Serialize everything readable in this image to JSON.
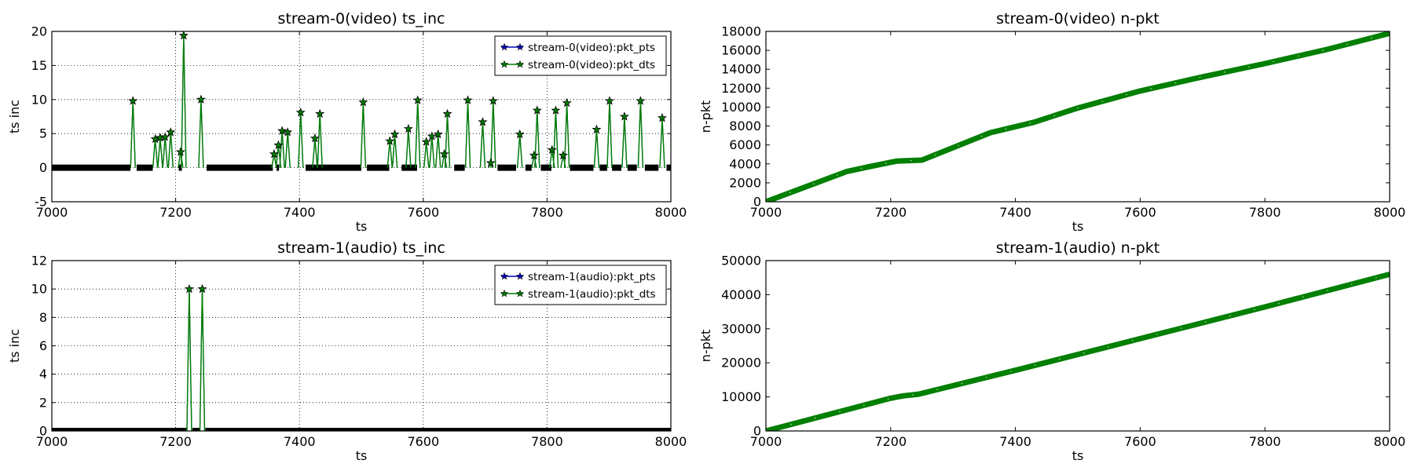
{
  "chart_data": [
    {
      "type": "line",
      "title": "stream-0(video) ts_inc",
      "xlabel": "ts",
      "ylabel": "ts inc",
      "xlim": [
        7000,
        8000
      ],
      "ylim": [
        -5,
        20
      ],
      "xticks": [
        "7000",
        "7200",
        "7400",
        "7600",
        "7800",
        "8000"
      ],
      "yticks": [
        "-5",
        "0",
        "5",
        "10",
        "15",
        "20"
      ],
      "grid": true,
      "legend_position": "top-right",
      "marker": "star",
      "series": [
        {
          "name": "stream-0(video):pkt_pts",
          "color": "#0000bf"
        },
        {
          "name": "stream-0(video):pkt_dts",
          "color": "#007f00"
        }
      ],
      "baseline": {
        "y": 0,
        "segments": [
          [
            7000,
            7127
          ],
          [
            7137,
            7163
          ],
          [
            7205,
            7210
          ],
          [
            7250,
            7357
          ],
          [
            7363,
            7367
          ],
          [
            7410,
            7500
          ],
          [
            7509,
            7545
          ],
          [
            7565,
            7590
          ],
          [
            7650,
            7667
          ],
          [
            7720,
            7750
          ],
          [
            7765,
            7775
          ],
          [
            7790,
            7807
          ],
          [
            7837,
            7875
          ],
          [
            7885,
            7897
          ],
          [
            7905,
            7920
          ],
          [
            7930,
            7945
          ],
          [
            7958,
            7980
          ],
          [
            7993,
            8000
          ]
        ]
      },
      "spikes": [
        {
          "x": 7131,
          "y": 9.8
        },
        {
          "x": 7167,
          "y": 4.2
        },
        {
          "x": 7175,
          "y": 4.4
        },
        {
          "x": 7183,
          "y": 4.5
        },
        {
          "x": 7192,
          "y": 5.2
        },
        {
          "x": 7208,
          "y": 2.3
        },
        {
          "x": 7213,
          "y": 19.4
        },
        {
          "x": 7241,
          "y": 10.0
        },
        {
          "x": 7359,
          "y": 2.0
        },
        {
          "x": 7366,
          "y": 3.3
        },
        {
          "x": 7372,
          "y": 5.4
        },
        {
          "x": 7381,
          "y": 5.2
        },
        {
          "x": 7402,
          "y": 8.1
        },
        {
          "x": 7425,
          "y": 4.3
        },
        {
          "x": 7433,
          "y": 7.9
        },
        {
          "x": 7503,
          "y": 9.6
        },
        {
          "x": 7546,
          "y": 3.9
        },
        {
          "x": 7554,
          "y": 4.9
        },
        {
          "x": 7576,
          "y": 5.7
        },
        {
          "x": 7591,
          "y": 9.9
        },
        {
          "x": 7605,
          "y": 3.8
        },
        {
          "x": 7614,
          "y": 4.6
        },
        {
          "x": 7624,
          "y": 4.9
        },
        {
          "x": 7634,
          "y": 2.0
        },
        {
          "x": 7639,
          "y": 7.9
        },
        {
          "x": 7672,
          "y": 9.9
        },
        {
          "x": 7696,
          "y": 6.7
        },
        {
          "x": 7709,
          "y": 0.7
        },
        {
          "x": 7713,
          "y": 9.8
        },
        {
          "x": 7756,
          "y": 4.9
        },
        {
          "x": 7779,
          "y": 1.8
        },
        {
          "x": 7784,
          "y": 8.4
        },
        {
          "x": 7808,
          "y": 2.6
        },
        {
          "x": 7814,
          "y": 8.4
        },
        {
          "x": 7826,
          "y": 1.8
        },
        {
          "x": 7832,
          "y": 9.5
        },
        {
          "x": 7880,
          "y": 5.6
        },
        {
          "x": 7901,
          "y": 9.8
        },
        {
          "x": 7925,
          "y": 7.5
        },
        {
          "x": 7951,
          "y": 9.8
        },
        {
          "x": 7986,
          "y": 7.3
        }
      ]
    },
    {
      "type": "line",
      "title": "stream-0(video) n-pkt",
      "xlabel": "ts",
      "ylabel": "n-pkt",
      "xlim": [
        7000,
        8000
      ],
      "ylim": [
        0,
        18000
      ],
      "xticks": [
        "7000",
        "7200",
        "7400",
        "7600",
        "7800",
        "8000"
      ],
      "yticks": [
        "0",
        "2000",
        "4000",
        "6000",
        "8000",
        "10000",
        "12000",
        "14000",
        "16000",
        "18000"
      ],
      "grid": false,
      "color": "#007f00",
      "x": [
        7000,
        7130,
        7165,
        7210,
        7250,
        7360,
        7430,
        7500,
        7600,
        7700,
        7800,
        7900,
        8000
      ],
      "y": [
        0,
        3200,
        3700,
        4300,
        4400,
        7300,
        8400,
        9900,
        11700,
        13200,
        14600,
        16100,
        17800
      ]
    },
    {
      "type": "line",
      "title": "stream-1(audio) ts_inc",
      "xlabel": "ts",
      "ylabel": "ts inc",
      "xlim": [
        7000,
        8000
      ],
      "ylim": [
        0,
        12
      ],
      "xticks": [
        "7000",
        "7200",
        "7400",
        "7600",
        "7800",
        "8000"
      ],
      "yticks": [
        "0",
        "2",
        "4",
        "6",
        "8",
        "10",
        "12"
      ],
      "grid": true,
      "legend_position": "top-right",
      "marker": "star",
      "series": [
        {
          "name": "stream-1(audio):pkt_pts",
          "color": "#0000bf"
        },
        {
          "name": "stream-1(audio):pkt_dts",
          "color": "#007f00"
        }
      ],
      "baseline": {
        "y": 0,
        "segments": [
          [
            7000,
            7219
          ],
          [
            7227,
            7239
          ],
          [
            7248,
            8000
          ]
        ]
      },
      "spikes": [
        {
          "x": 7222,
          "y": 10.0
        },
        {
          "x": 7243,
          "y": 10.0
        }
      ]
    },
    {
      "type": "line",
      "title": "stream-1(audio) n-pkt",
      "xlabel": "ts",
      "ylabel": "n-pkt",
      "xlim": [
        7000,
        8000
      ],
      "ylim": [
        0,
        50000
      ],
      "xticks": [
        "7000",
        "7200",
        "7400",
        "7600",
        "7800",
        "8000"
      ],
      "yticks": [
        "0",
        "10000",
        "20000",
        "30000",
        "40000",
        "50000"
      ],
      "grid": false,
      "color": "#007f00",
      "x": [
        7000,
        7200,
        7220,
        7245,
        7400,
        7600,
        7800,
        8000
      ],
      "y": [
        0,
        9600,
        10300,
        10800,
        17800,
        27100,
        36400,
        46000
      ]
    }
  ]
}
